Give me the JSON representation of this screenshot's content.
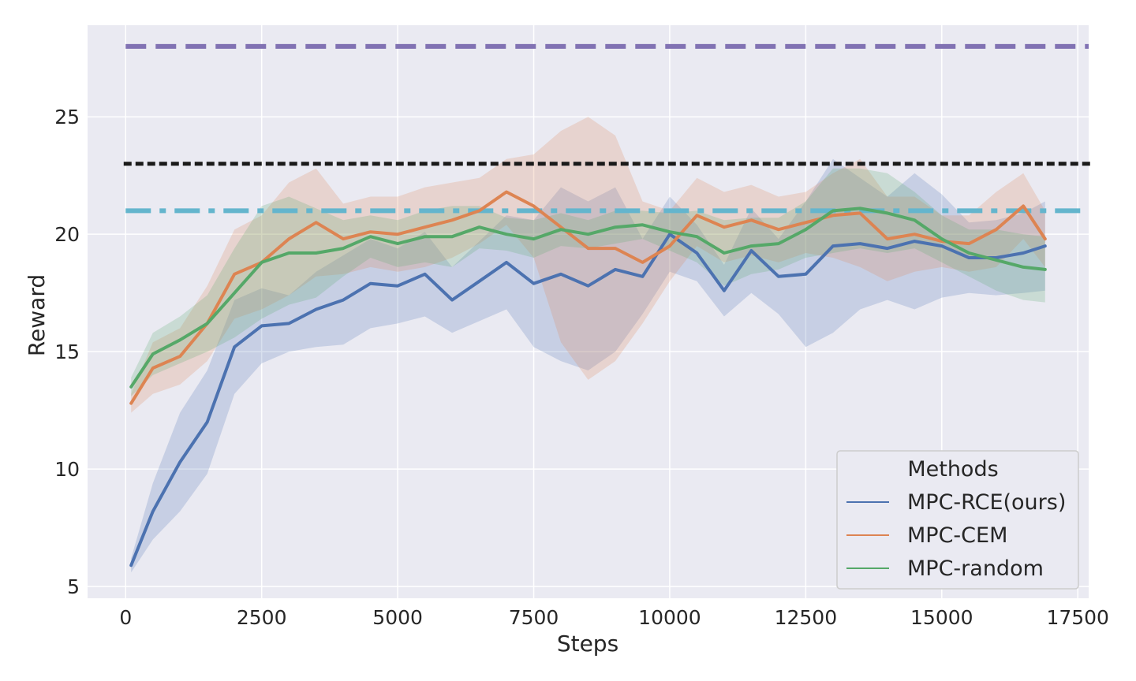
{
  "chart_data": {
    "type": "line",
    "xlabel": "Steps",
    "ylabel": "Reward",
    "xlim": [
      -700,
      17700
    ],
    "ylim": [
      4.5,
      28.9
    ],
    "xticks": [
      "0",
      "2500",
      "5000",
      "7500",
      "10000",
      "12500",
      "15000",
      "17500"
    ],
    "yticks": [
      "5",
      "10",
      "15",
      "20",
      "25"
    ],
    "grid": true,
    "background": "#eaeaf2",
    "legend": {
      "title": "Methods",
      "position": "lower-right",
      "entries": [
        "MPC-RCE(ours)",
        "MPC-CEM",
        "MPC-random"
      ]
    },
    "reference_lines": [
      {
        "y": 28.0,
        "style": "dashed",
        "color": "#8172b3"
      },
      {
        "y": 23.0,
        "style": "dotted",
        "color": "#1a1a1a"
      },
      {
        "y": 21.0,
        "style": "dashdot",
        "color": "#64b5cd"
      }
    ],
    "series": [
      {
        "name": "MPC-RCE(ours)",
        "color": "#4c72b0",
        "x": [
          100,
          500,
          1000,
          1500,
          2000,
          2500,
          3000,
          3500,
          4000,
          4500,
          5000,
          5500,
          6000,
          6500,
          7000,
          7500,
          8000,
          8500,
          9000,
          9500,
          10000,
          10500,
          11000,
          11500,
          12000,
          12500,
          13000,
          13500,
          14000,
          14500,
          15000,
          15500,
          16000,
          16500,
          16900
        ],
        "mean": [
          5.9,
          8.2,
          10.3,
          12.0,
          15.2,
          16.1,
          16.2,
          16.8,
          17.2,
          17.9,
          17.8,
          18.3,
          17.2,
          18.0,
          18.8,
          17.9,
          18.3,
          17.8,
          18.5,
          18.2,
          20.0,
          19.2,
          17.6,
          19.3,
          18.2,
          18.3,
          19.5,
          19.6,
          19.4,
          19.7,
          19.5,
          19.0,
          19.0,
          19.2,
          19.5
        ],
        "lower": [
          5.6,
          7.0,
          8.2,
          9.8,
          13.2,
          14.5,
          15.0,
          15.2,
          15.3,
          16.0,
          16.2,
          16.5,
          15.8,
          16.3,
          16.8,
          15.2,
          14.6,
          14.2,
          15.0,
          16.6,
          18.4,
          18.0,
          16.5,
          17.5,
          16.6,
          15.2,
          15.8,
          16.8,
          17.2,
          16.8,
          17.3,
          17.5,
          17.4,
          17.5,
          17.6
        ],
        "upper": [
          6.2,
          9.4,
          12.4,
          14.2,
          17.2,
          17.7,
          17.4,
          18.4,
          19.1,
          19.8,
          19.4,
          20.1,
          18.6,
          19.7,
          20.8,
          20.6,
          22.0,
          21.4,
          22.0,
          19.8,
          21.6,
          20.4,
          18.7,
          21.1,
          19.8,
          21.4,
          23.2,
          22.4,
          21.6,
          22.6,
          21.7,
          20.5,
          20.6,
          20.9,
          21.4
        ]
      },
      {
        "name": "MPC-CEM",
        "color": "#dd8452",
        "x": [
          100,
          500,
          1000,
          1500,
          2000,
          2500,
          3000,
          3500,
          4000,
          4500,
          5000,
          5500,
          6000,
          6500,
          7000,
          7500,
          8000,
          8500,
          9000,
          9500,
          10000,
          10500,
          11000,
          11500,
          12000,
          12500,
          13000,
          13500,
          14000,
          14500,
          15000,
          15500,
          16000,
          16500,
          16900
        ],
        "mean": [
          12.8,
          14.3,
          14.8,
          16.2,
          18.3,
          18.8,
          19.8,
          20.5,
          19.8,
          20.1,
          20.0,
          20.3,
          20.6,
          21.0,
          21.8,
          21.2,
          20.3,
          19.4,
          19.4,
          18.8,
          19.5,
          20.8,
          20.3,
          20.6,
          20.2,
          20.5,
          20.8,
          20.9,
          19.8,
          20.0,
          19.7,
          19.6,
          20.2,
          21.2,
          19.8
        ],
        "lower": [
          12.4,
          13.2,
          13.6,
          14.6,
          16.4,
          16.8,
          17.4,
          18.2,
          18.3,
          18.6,
          18.4,
          18.6,
          19.0,
          19.6,
          20.4,
          19.0,
          15.4,
          13.8,
          14.6,
          16.2,
          18.0,
          19.5,
          18.8,
          19.1,
          18.8,
          19.2,
          19.0,
          18.6,
          18.0,
          18.4,
          18.6,
          18.4,
          18.6,
          19.8,
          18.6
        ],
        "upper": [
          13.2,
          15.4,
          16.0,
          17.8,
          20.2,
          20.8,
          22.2,
          22.8,
          21.3,
          21.6,
          21.6,
          22.0,
          22.2,
          22.4,
          23.2,
          23.4,
          24.4,
          25.0,
          24.2,
          21.4,
          21.0,
          22.4,
          21.8,
          22.1,
          21.6,
          21.8,
          22.6,
          23.2,
          21.6,
          21.6,
          20.8,
          20.8,
          21.8,
          22.6,
          21.0
        ]
      },
      {
        "name": "MPC-random",
        "color": "#55a868",
        "x": [
          100,
          500,
          1000,
          1500,
          2000,
          2500,
          3000,
          3500,
          4000,
          4500,
          5000,
          5500,
          6000,
          6500,
          7000,
          7500,
          8000,
          8500,
          9000,
          9500,
          10000,
          10500,
          11000,
          11500,
          12000,
          12500,
          13000,
          13500,
          14000,
          14500,
          15000,
          15500,
          16000,
          16500,
          16900
        ],
        "mean": [
          13.5,
          14.9,
          15.5,
          16.2,
          17.5,
          18.8,
          19.2,
          19.2,
          19.4,
          19.9,
          19.6,
          19.9,
          19.9,
          20.3,
          20.0,
          19.8,
          20.2,
          20.0,
          20.3,
          20.4,
          20.1,
          19.9,
          19.2,
          19.5,
          19.6,
          20.2,
          21.0,
          21.1,
          20.9,
          20.6,
          19.8,
          19.2,
          18.9,
          18.6,
          18.5
        ],
        "lower": [
          13.1,
          14.0,
          14.5,
          15.0,
          15.6,
          16.4,
          17.0,
          17.3,
          18.2,
          19.0,
          18.6,
          18.8,
          18.6,
          19.4,
          19.3,
          19.0,
          19.5,
          19.4,
          19.6,
          19.8,
          19.3,
          18.8,
          17.8,
          18.3,
          18.5,
          19.0,
          19.2,
          19.4,
          19.2,
          19.4,
          18.8,
          18.2,
          17.6,
          17.2,
          17.1
        ],
        "upper": [
          13.9,
          15.8,
          16.5,
          17.4,
          19.4,
          21.2,
          21.6,
          21.1,
          20.6,
          20.8,
          20.6,
          21.0,
          21.2,
          21.2,
          20.7,
          20.6,
          20.9,
          20.6,
          21.0,
          21.0,
          20.9,
          21.0,
          20.6,
          20.7,
          20.7,
          21.4,
          22.8,
          22.8,
          22.6,
          21.8,
          20.8,
          20.2,
          20.2,
          20.0,
          19.9
        ]
      }
    ]
  }
}
